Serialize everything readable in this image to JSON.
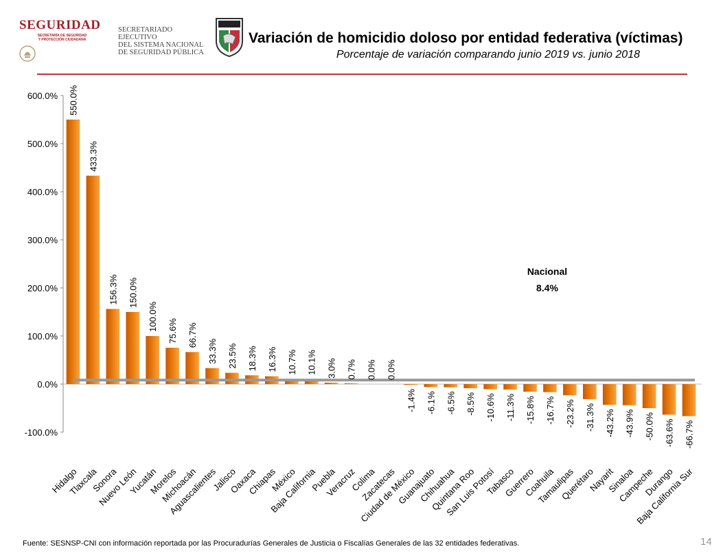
{
  "header": {
    "brand_word": "SEGURIDAD",
    "brand_sub_line1": "SECRETARÍA DE SEGURIDAD",
    "brand_sub_line2": "Y PROTECCIÓN CIUDADANA",
    "secretariat_line1": "SECRETARIADO EJECUTIVO",
    "secretariat_line2": "DEL SISTEMA NACIONAL",
    "secretariat_line3": "DE SEGURIDAD PÚBLICA",
    "accent_color": "#a2202a"
  },
  "footer": {
    "source": "Fuente: SESNSP-CNI con información reportada por las Procuradurías Generales de Justicia o Fiscalías Generales de las 32 entidades federativas.",
    "page_number": "14"
  },
  "chart_data": {
    "type": "bar",
    "title": "Variación de homicidio doloso por entidad federativa (víctimas)",
    "subtitle": "Porcentaje de variación comparando junio 2019 vs. junio 2018",
    "categories": [
      "Hidalgo",
      "Tlaxcala",
      "Sonora",
      "Nuevo León",
      "Yucatán",
      "Morelos",
      "Michoacán",
      "Aguascalientes",
      "Jalisco",
      "Oaxaca",
      "Chiapas",
      "México",
      "Baja California",
      "Puebla",
      "Veracruz",
      "Colima",
      "Zacatecas",
      "Ciudad de México",
      "Guanajuato",
      "Chihuahua",
      "Quintana Roo",
      "San Luis Potosí",
      "Tabasco",
      "Guerrero",
      "Coahuila",
      "Tamaulipas",
      "Querétaro",
      "Nayarit",
      "Sinaloa",
      "Campeche",
      "Durango",
      "Baja California Sur"
    ],
    "values": [
      550.0,
      433.3,
      156.3,
      150.0,
      100.0,
      75.6,
      66.7,
      33.3,
      23.5,
      18.3,
      16.3,
      10.7,
      10.1,
      3.0,
      0.7,
      0.0,
      0.0,
      -1.4,
      -6.1,
      -6.5,
      -8.5,
      -10.6,
      -11.3,
      -15.8,
      -16.7,
      -23.2,
      -31.3,
      -43.2,
      -43.9,
      -50.0,
      -63.6,
      -66.7
    ],
    "value_labels": [
      "550.0%",
      "433.3%",
      "156.3%",
      "150.0%",
      "100.0%",
      "75.6%",
      "66.7%",
      "33.3%",
      "23.5%",
      "18.3%",
      "16.3%",
      "10.7%",
      "10.1%",
      "3.0%",
      "0.7%",
      "0.0%",
      "0.0%",
      "-1.4%",
      "-6.1%",
      "-6.5%",
      "-8.5%",
      "-10.6%",
      "-11.3%",
      "-15.8%",
      "-16.7%",
      "-23.2%",
      "-31.3%",
      "-43.2%",
      "-43.9%",
      "-50.0%",
      "-63.6%",
      "-66.7%"
    ],
    "ylim": [
      -100,
      600
    ],
    "yticks": [
      -100,
      0,
      100,
      200,
      300,
      400,
      500,
      600
    ],
    "ytick_labels": [
      "-100.0%",
      "0.0%",
      "100.0%",
      "200.0%",
      "300.0%",
      "400.0%",
      "500.0%",
      "600.0%"
    ],
    "xlabel": "",
    "ylabel": "",
    "grid": false,
    "legend": "none",
    "bar_color": "#e8780c",
    "reference_line": {
      "value": 8.4,
      "label_line1": "Nacional",
      "label_line2": "8.4%",
      "color": "#999999"
    }
  }
}
